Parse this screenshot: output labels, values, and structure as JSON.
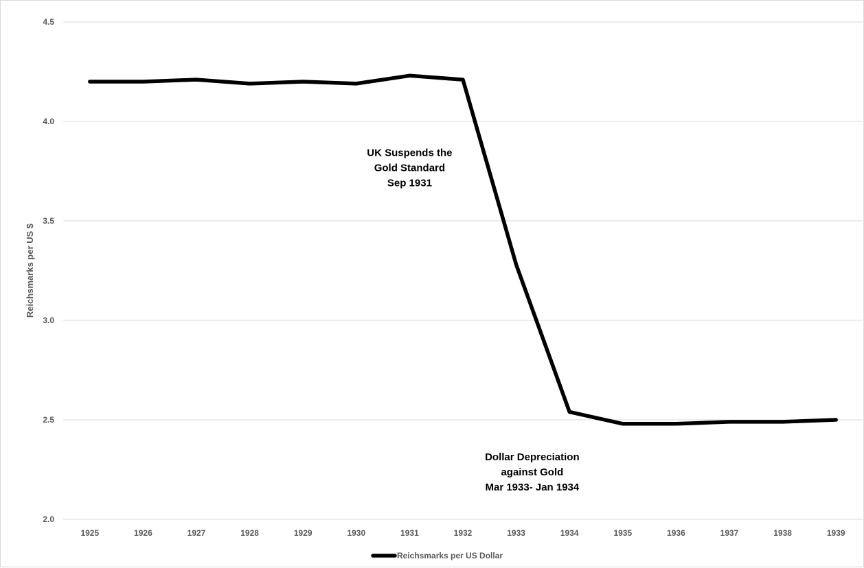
{
  "chart_data": {
    "type": "line",
    "title": "",
    "xlabel": "",
    "ylabel": "Reichsmarks per US $",
    "x": [
      "1925",
      "1926",
      "1927",
      "1928",
      "1929",
      "1930",
      "1931",
      "1932",
      "1933",
      "1934",
      "1935",
      "1936",
      "1937",
      "1938",
      "1939"
    ],
    "series": [
      {
        "name": "Reichsmarks per US Dollar",
        "color": "#000000",
        "values": [
          4.2,
          4.2,
          4.21,
          4.19,
          4.2,
          4.19,
          4.23,
          4.21,
          3.28,
          2.54,
          2.48,
          2.48,
          2.49,
          2.49,
          2.5
        ]
      }
    ],
    "ylim": [
      2.0,
      4.5
    ],
    "yticks": [
      "2.0",
      "2.5",
      "3.0",
      "3.5",
      "4.0",
      "4.5"
    ],
    "grid": true,
    "legend_position": "bottom",
    "annotations": [
      {
        "lines": [
          "UK Suspends the",
          "Gold Standard",
          "Sep 1931"
        ],
        "x": "1931",
        "y": 3.75
      },
      {
        "lines": [
          "Dollar Depreciation",
          "against Gold",
          "Mar 1933- Jan 1934"
        ],
        "x": "1933.3",
        "y": 2.22
      }
    ]
  }
}
